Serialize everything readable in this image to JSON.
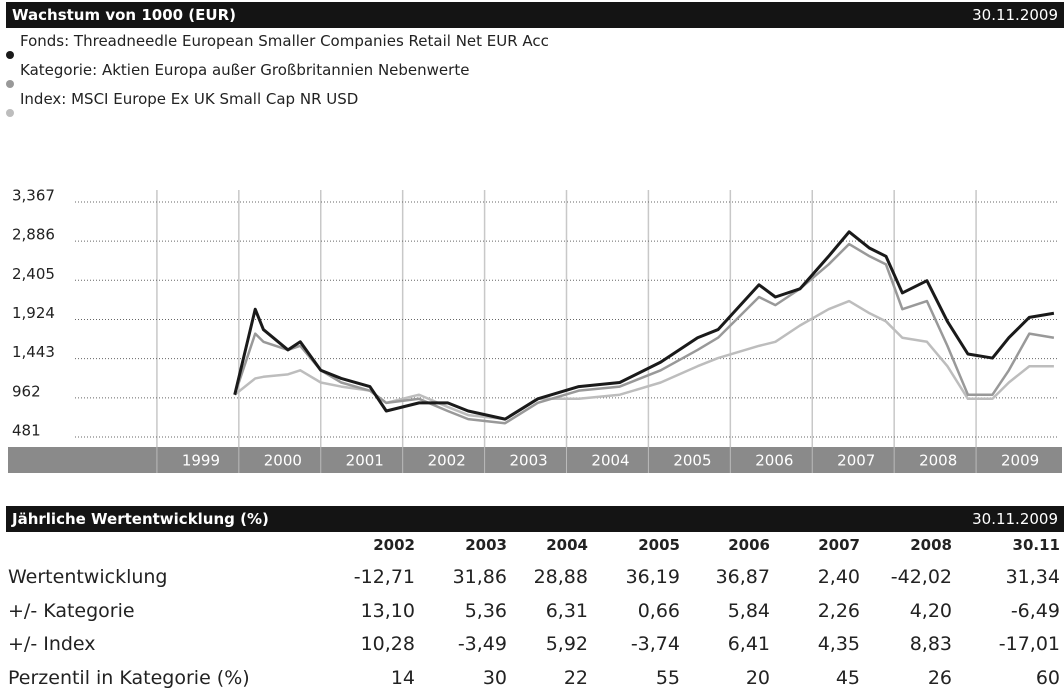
{
  "chart_data": {
    "type": "line",
    "title": "Wachstum von 1000 (EUR)",
    "date": "30.11.2009",
    "xlim": [
      1998,
      2010
    ],
    "xticks": [
      1999,
      2000,
      2001,
      2002,
      2003,
      2004,
      2005,
      2006,
      2007,
      2008,
      2009
    ],
    "ylim": [
      358,
      3514
    ],
    "yticks": [
      {
        "value": 481,
        "label": "481"
      },
      {
        "value": 962,
        "label": "962"
      },
      {
        "value": 1443,
        "label": "1,443"
      },
      {
        "value": 1924,
        "label": "1,924"
      },
      {
        "value": 2405,
        "label": "2,405"
      },
      {
        "value": 2886,
        "label": "2,886"
      },
      {
        "value": 3367,
        "label": "3,367"
      }
    ],
    "grid": true,
    "x": [
      1999.95,
      2000.2,
      2000.3,
      2000.6,
      2000.75,
      2001.0,
      2001.25,
      2001.6,
      2001.8,
      2002.2,
      2002.55,
      2002.8,
      2003.25,
      2003.65,
      2004.15,
      2004.65,
      2005.15,
      2005.6,
      2005.85,
      2006.35,
      2006.55,
      2006.85,
      2007.2,
      2007.45,
      2007.7,
      2007.9,
      2008.1,
      2008.4,
      2008.65,
      2008.9,
      2009.2,
      2009.4,
      2009.65,
      2009.95
    ],
    "series": [
      {
        "name": "Index:  MSCI Europe Ex UK Small Cap NR USD",
        "color": "#bdbdbd",
        "values": [
          1000,
          1200,
          1220,
          1250,
          1300,
          1150,
          1100,
          1050,
          900,
          1000,
          850,
          750,
          700,
          950,
          950,
          1000,
          1150,
          1350,
          1450,
          1600,
          1650,
          1850,
          2050,
          2150,
          2000,
          1900,
          1700,
          1650,
          1350,
          950,
          950,
          1150,
          1350,
          1350
        ]
      },
      {
        "name": "Kategorie:  Aktien Europa außer Großbritannien Nebenwerte",
        "color": "#999999",
        "values": [
          1000,
          1750,
          1650,
          1550,
          1600,
          1300,
          1150,
          1050,
          900,
          950,
          800,
          700,
          650,
          900,
          1050,
          1100,
          1300,
          1550,
          1700,
          2200,
          2100,
          2300,
          2600,
          2850,
          2700,
          2600,
          2050,
          2150,
          1600,
          1000,
          1000,
          1300,
          1750,
          1700
        ]
      },
      {
        "name": "Fonds:  Threadneedle European Smaller Companies Retail Net EUR Acc",
        "color": "#1a1a1a",
        "values": [
          1000,
          2050,
          1800,
          1550,
          1650,
          1300,
          1200,
          1100,
          800,
          900,
          900,
          800,
          700,
          950,
          1100,
          1150,
          1400,
          1700,
          1800,
          2350,
          2200,
          2300,
          2700,
          3000,
          2800,
          2700,
          2250,
          2400,
          1900,
          1500,
          1450,
          1700,
          1950,
          2000
        ]
      }
    ]
  },
  "table": {
    "title": "Jährliche Wertentwicklung (%)",
    "date": "30.11.2009",
    "columns": [
      "2002",
      "2003",
      "2004",
      "2005",
      "2006",
      "2007",
      "2008",
      "30.11"
    ],
    "rows": [
      {
        "label": "Wertentwicklung",
        "cells": [
          "-12,71",
          "31,86",
          "28,88",
          "36,19",
          "36,87",
          "2,40",
          "-42,02",
          "31,34"
        ]
      },
      {
        "label": "+/- Kategorie",
        "cells": [
          "13,10",
          "5,36",
          "6,31",
          "0,66",
          "5,84",
          "2,26",
          "4,20",
          "-6,49"
        ]
      },
      {
        "label": "+/- Index",
        "cells": [
          "10,28",
          "-3,49",
          "5,92",
          "-3,74",
          "6,41",
          "4,35",
          "8,83",
          "-17,01"
        ]
      },
      {
        "label": "Perzentil in Kategorie (%)",
        "cells": [
          "14",
          "30",
          "22",
          "55",
          "20",
          "45",
          "26",
          "60"
        ]
      }
    ]
  }
}
